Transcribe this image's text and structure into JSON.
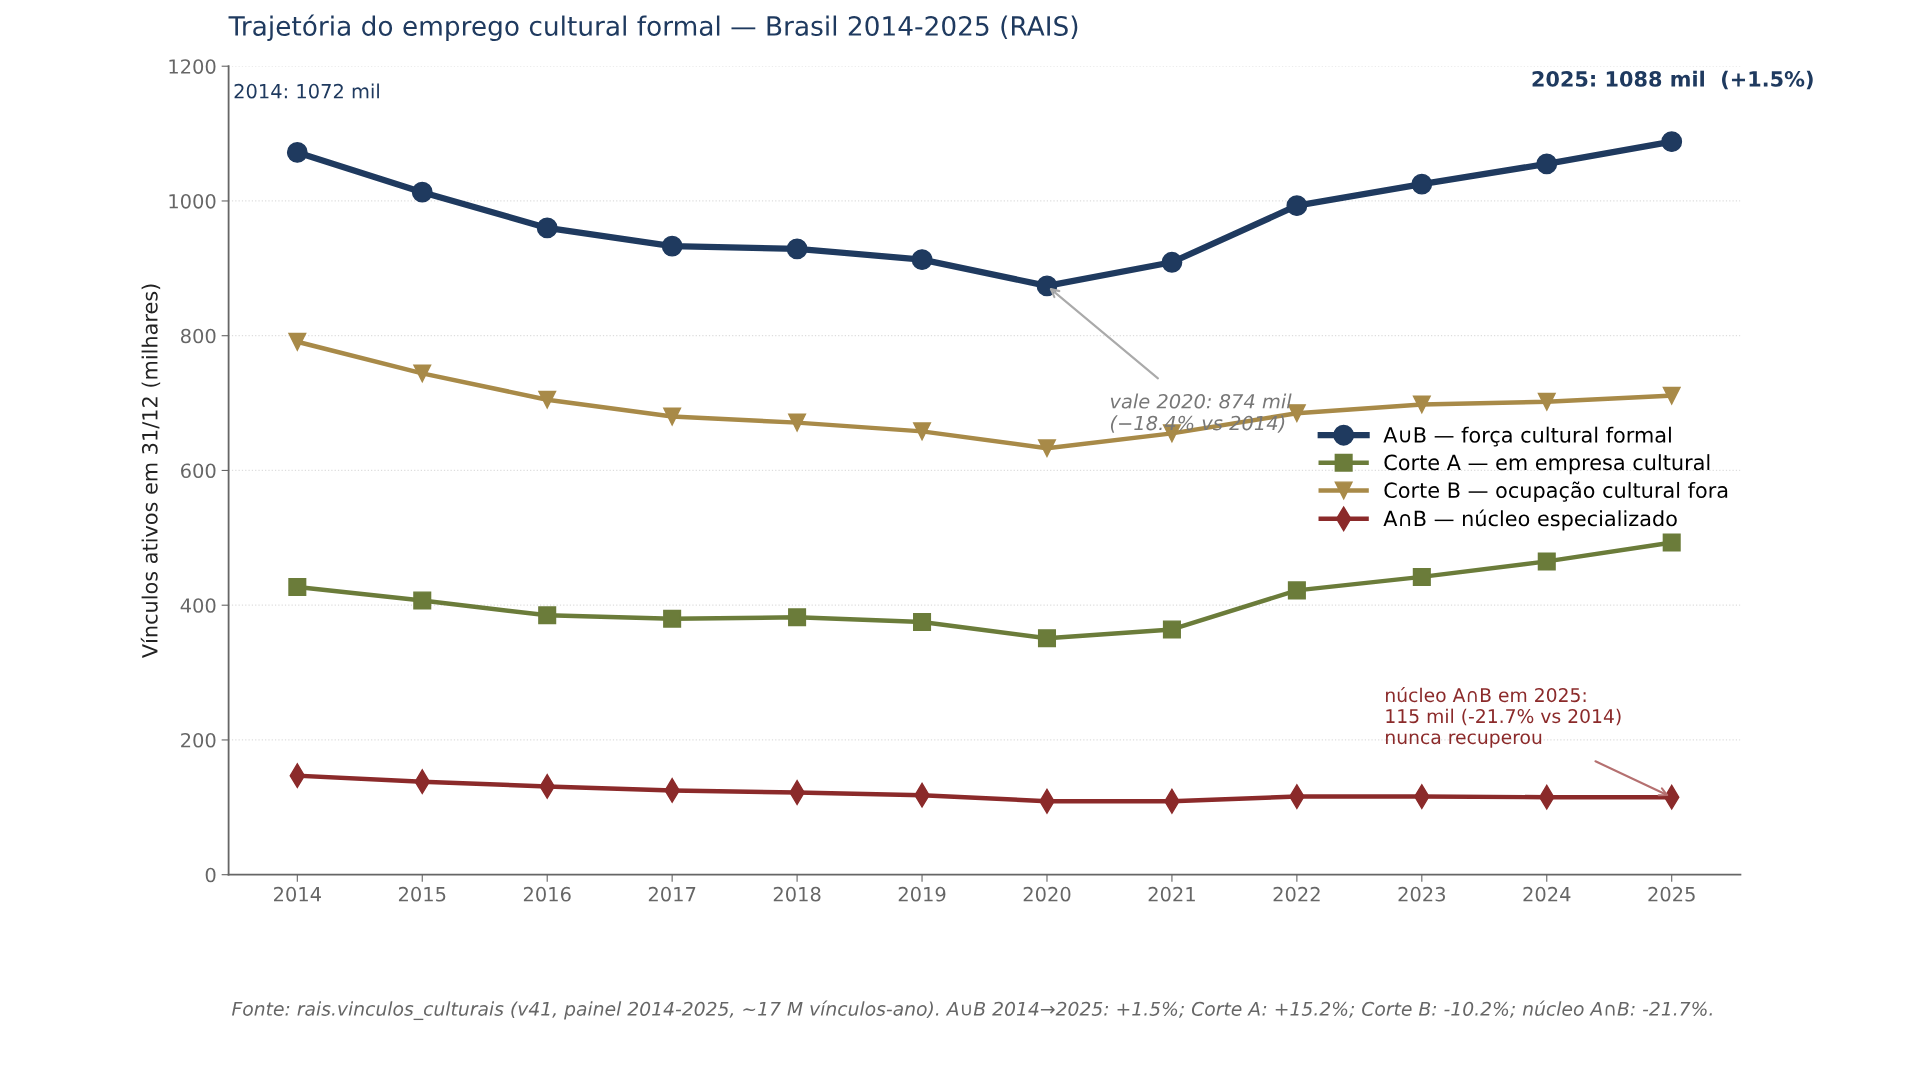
{
  "chart_data": {
    "type": "line",
    "title": "Trajetória do emprego cultural formal — Brasil 2014-2025 (RAIS)",
    "ylabel": "Vínculos ativos em 31/12 (milhares)",
    "x": [
      2014,
      2015,
      2016,
      2017,
      2018,
      2019,
      2020,
      2021,
      2022,
      2023,
      2024,
      2025
    ],
    "xlim": [
      2013.45,
      2025.55
    ],
    "xticks": [
      2014,
      2015,
      2016,
      2017,
      2018,
      2019,
      2020,
      2021,
      2022,
      2023,
      2024,
      2025
    ],
    "ylim": [
      0,
      1200
    ],
    "yticks": [
      0,
      200,
      400,
      600,
      800,
      1000,
      1200
    ],
    "grid": "y",
    "legend": "right",
    "line_style": "solid",
    "series": [
      {
        "name": "A∪B — força cultural formal",
        "color": "#1f3a5f",
        "marker": "circle",
        "values": [
          1072,
          1013,
          960,
          933,
          929,
          913,
          874,
          909,
          993,
          1025,
          1055,
          1088
        ]
      },
      {
        "name": "Corte A — em empresa cultural",
        "color": "#6b7c3a",
        "marker": "square",
        "values": [
          427,
          407,
          385,
          380,
          382,
          375,
          351,
          364,
          422,
          442,
          465,
          493
        ]
      },
      {
        "name": "Corte B — ocupação cultural fora",
        "color": "#a88a48",
        "marker": "triangle",
        "values": [
          791,
          744,
          705,
          680,
          671,
          658,
          633,
          655,
          685,
          698,
          702,
          711
        ]
      },
      {
        "name": "A∩B — núcleo especializado",
        "color": "#8b2a2a",
        "marker": "diamond",
        "values": [
          147,
          138,
          131,
          125,
          122,
          118,
          109,
          109,
          116,
          116,
          115,
          115
        ]
      }
    ],
    "annotations": [
      "2014: 1072 mil",
      "2025: 1088 mil  (+1.5%)",
      {
        "text": "vale 2020: 874 mil\n(−18.4% vs 2014)",
        "x": 2020,
        "y": 874
      },
      {
        "text": "núcleo A∩B em 2025:\n115 mil (-21.7% vs 2014)\nnunca recuperou",
        "x": 2025,
        "y": 115
      },
      "Fonte: rais.vinculos_culturais (v41, painel 2014-2025, ~17 M vínculos-ano). A∪B 2014→2025: +1.5%; Corte A: +15.2%; Corte B: -10.2%; núcleo A∩B: -21.7%."
    ]
  }
}
